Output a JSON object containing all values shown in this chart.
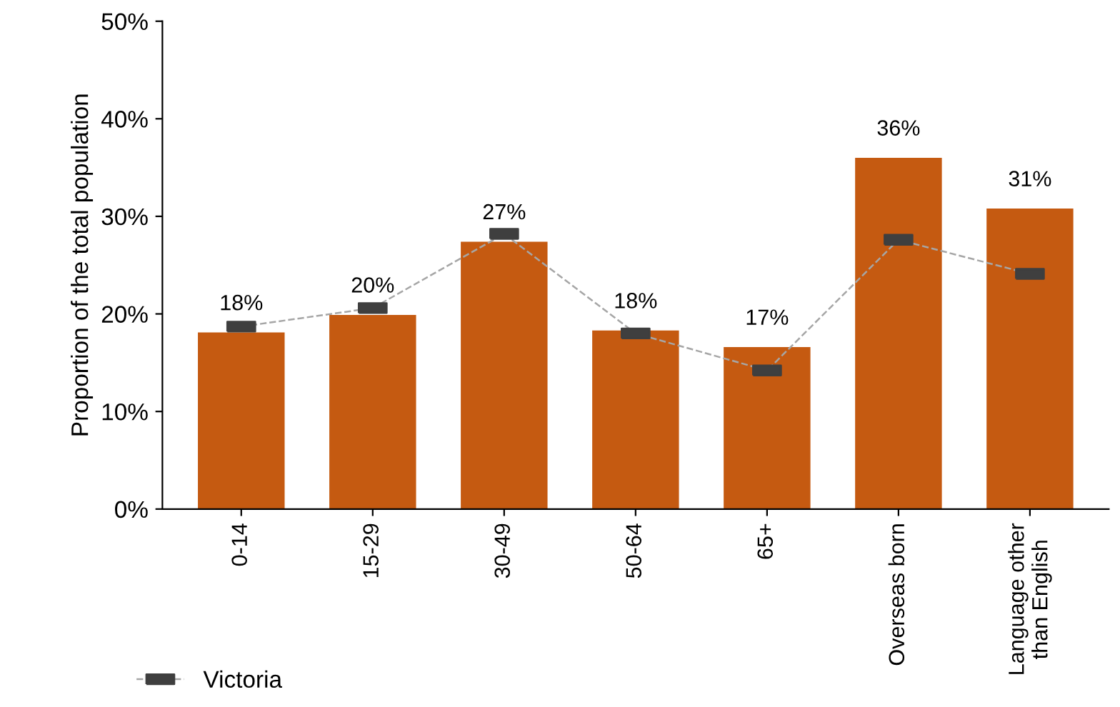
{
  "chart_data": {
    "type": "bar",
    "ylabel": "Proportion of the total population",
    "categories": [
      "0-14",
      "15-29",
      "30-49",
      "50-64",
      "65+",
      "Overseas born",
      "Language other than English"
    ],
    "series": [
      {
        "color": "#c55a11",
        "values": [
          18.1,
          19.9,
          27.4,
          18.3,
          16.6,
          36.0,
          30.8
        ],
        "value_labels": [
          "18%",
          "20%",
          "27%",
          "18%",
          "17%",
          "36%",
          "31%"
        ]
      },
      {
        "type": "line",
        "name": "Victoria",
        "color": "#a6a6a6",
        "marker": "square",
        "line_style": "dashed",
        "values": [
          18.7,
          20.6,
          28.2,
          18.0,
          14.2,
          27.6,
          24.1
        ]
      }
    ],
    "ylim": [
      0,
      50
    ],
    "yticks": [
      {
        "value": 0,
        "label": "0%"
      },
      {
        "value": 10,
        "label": "10%"
      },
      {
        "value": 20,
        "label": "20%"
      },
      {
        "value": 30,
        "label": "30%"
      },
      {
        "value": 40,
        "label": "40%"
      },
      {
        "value": 50,
        "label": "50%"
      }
    ],
    "grid": false,
    "legend": "bottom left"
  }
}
